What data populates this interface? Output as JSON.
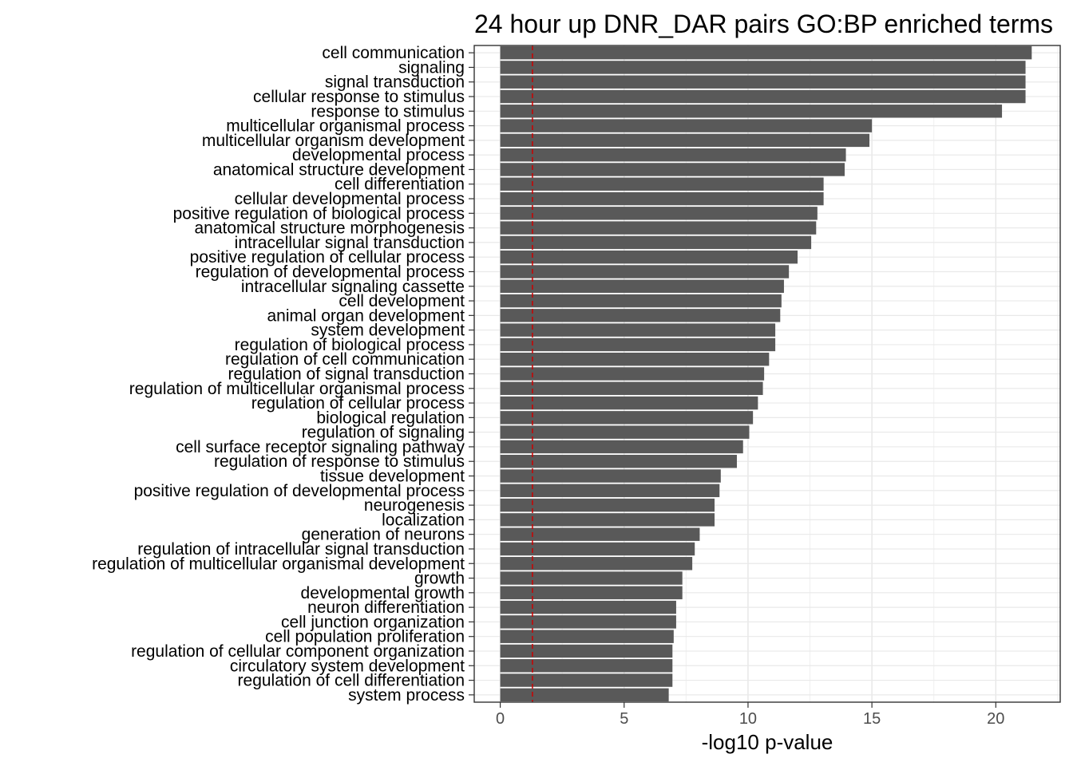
{
  "chart_data": {
    "type": "bar",
    "orientation": "horizontal",
    "title": "24 hour up DNR_DAR pairs GO:BP enriched terms",
    "xlabel": "-log10 p-value",
    "ylabel": "",
    "xlim": [
      -1.05,
      22.6
    ],
    "xticks": [
      0,
      5,
      10,
      15,
      20
    ],
    "grid": true,
    "bar_color": "#595959",
    "threshold_line": {
      "value": 1.3,
      "color": "#cc0000",
      "style": "dashed"
    },
    "categories": [
      "cell communication",
      "signaling",
      "signal transduction",
      "cellular response to stimulus",
      "response to stimulus",
      "multicellular organismal process",
      "multicellular organism development",
      "developmental process",
      "anatomical structure development",
      "cell differentiation",
      "cellular developmental process",
      "positive regulation of biological process",
      "anatomical structure morphogenesis",
      "intracellular signal transduction",
      "positive regulation of cellular process",
      "regulation of developmental process",
      "intracellular signaling cassette",
      "cell development",
      "animal organ development",
      "system development",
      "regulation of biological process",
      "regulation of cell communication",
      "regulation of signal transduction",
      "regulation of multicellular organismal process",
      "regulation of cellular process",
      "biological regulation",
      "regulation of signaling",
      "cell surface receptor signaling pathway",
      "regulation of response to stimulus",
      "tissue development",
      "positive regulation of developmental process",
      "neurogenesis",
      "localization",
      "generation of neurons",
      "regulation of intracellular signal transduction",
      "regulation of multicellular organismal development",
      "growth",
      "developmental growth",
      "neuron differentiation",
      "cell junction organization",
      "cell population proliferation",
      "regulation of cellular component organization",
      "circulatory system development",
      "regulation of cell differentiation",
      "system process"
    ],
    "values": [
      21.45,
      21.2,
      21.2,
      21.2,
      20.25,
      15.0,
      14.9,
      13.95,
      13.9,
      13.05,
      13.05,
      12.8,
      12.75,
      12.55,
      12.0,
      11.65,
      11.45,
      11.35,
      11.3,
      11.1,
      11.1,
      10.85,
      10.65,
      10.6,
      10.4,
      10.2,
      10.05,
      9.8,
      9.55,
      8.9,
      8.85,
      8.65,
      8.65,
      8.05,
      7.85,
      7.75,
      7.35,
      7.35,
      7.1,
      7.1,
      7.0,
      6.95,
      6.95,
      6.95,
      6.8
    ]
  }
}
